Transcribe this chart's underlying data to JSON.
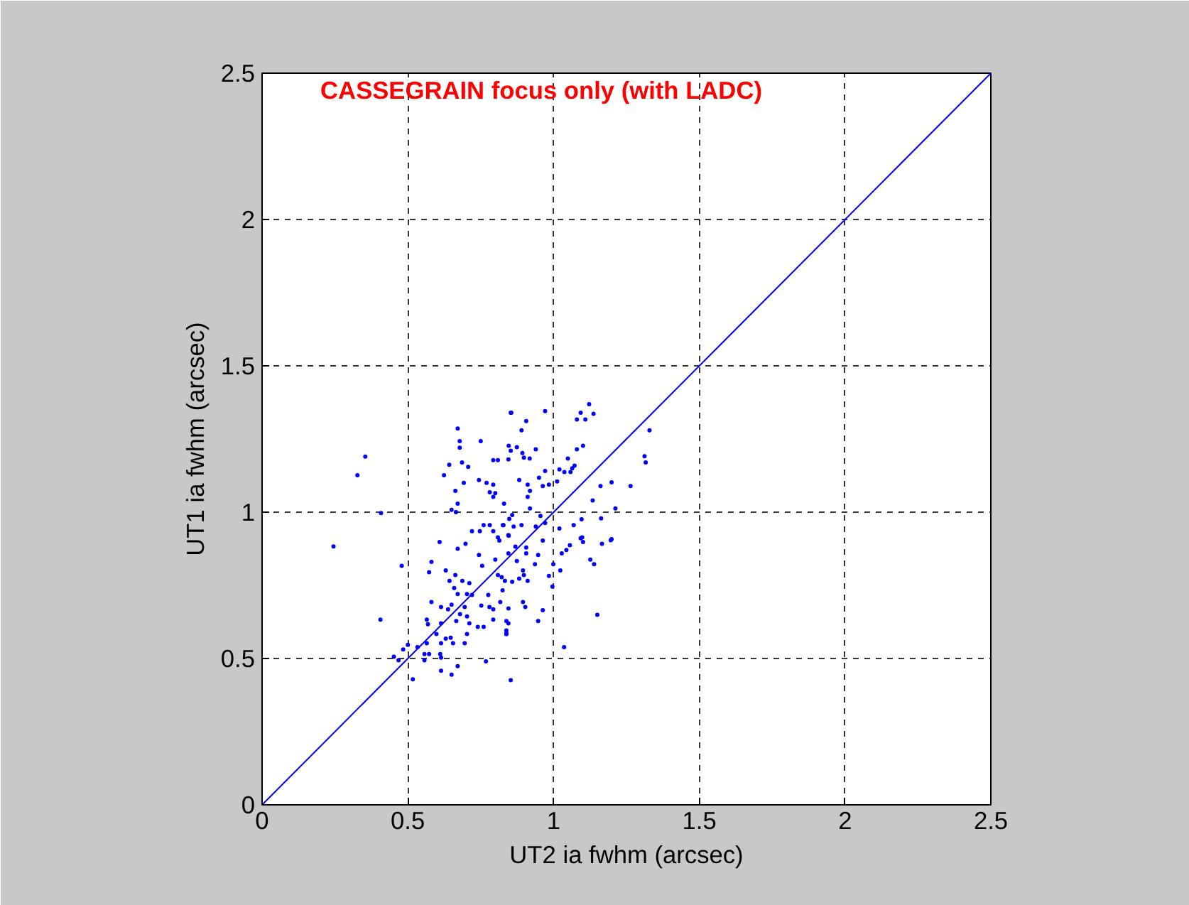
{
  "chart_data": {
    "type": "scatter",
    "title": "CASSEGRAIN focus only (with LADC)",
    "xlabel": "UT2 ia fwhm (arcsec)",
    "ylabel": "UT1 ia fwhm (arcsec)",
    "xlim": [
      0,
      2.5
    ],
    "ylim": [
      0,
      2.5
    ],
    "xticks": [
      0,
      0.5,
      1,
      1.5,
      2,
      2.5
    ],
    "yticks": [
      0,
      0.5,
      1,
      1.5,
      2,
      2.5
    ],
    "grid": true,
    "marker": "circle",
    "series": [
      {
        "color": "#0000ff",
        "x": [
          0.354,
          0.327,
          0.671,
          0.678,
          0.678,
          0.75,
          0.642,
          0.686,
          0.707,
          0.624,
          0.793,
          0.809,
          0.744,
          0.77,
          0.692,
          0.793,
          0.663,
          0.781,
          0.8,
          0.793,
          0.671,
          0.65,
          0.665,
          0.408,
          0.855,
          0.853,
          0.845,
          0.858,
          0.76,
          0.781,
          0.72,
          0.747,
          0.793,
          0.828,
          0.848,
          0.809,
          0.845,
          1.122,
          1.093,
          1.137,
          1.08,
          1.109,
          0.971,
          0.853,
          0.906,
          0.89,
          1.329,
          0.846,
          0.874,
          0.893,
          0.898,
          0.918,
          0.939,
          1.101,
          1.08,
          1.049,
          1.312,
          1.316,
          0.971,
          1.02,
          1.037,
          1.058,
          1.064,
          1.072,
          0.95,
          1.012,
          0.984,
          0.963,
          0.882,
          0.911,
          0.919,
          0.911,
          0.83,
          0.919,
          1.161,
          1.199,
          1.264,
          1.134,
          1.212,
          1.163,
          1.096,
          1.069,
          1.02,
          0.955,
          0.971,
          0.939,
          0.863,
          0.89,
          0.826,
          1.098,
          1.199,
          0.245,
          0.479,
          0.406,
          0.609,
          0.698,
          0.671,
          0.744,
          0.581,
          0.573,
          0.63,
          0.663,
          0.755,
          0.8,
          0.643,
          0.687,
          0.711,
          0.659,
          0.671,
          0.703,
          0.72,
          0.581,
          0.614,
          0.638,
          0.65,
          0.695,
          0.752,
          0.78,
          0.793,
          0.679,
          0.703,
          0.666,
          0.793,
          0.565,
          0.569,
          0.614,
          0.711,
          0.74,
          0.76,
          0.838,
          0.838,
          0.703,
          0.598,
          0.63,
          0.647,
          0.614,
          0.655,
          0.695,
          0.565,
          0.5,
          0.533,
          0.484,
          0.452,
          0.557,
          0.573,
          0.611,
          0.614,
          0.557,
          0.468,
          0.517,
          0.65,
          0.671,
          0.768,
          0.614,
          0.814,
          0.845,
          0.809,
          0.822,
          0.776,
          0.825,
          0.869,
          0.846,
          0.963,
          0.906,
          0.906,
          0.874,
          0.936,
          0.947,
          0.999,
          1.023,
          1.028,
          1.044,
          1.056,
          1.093,
          1.101,
          1.166,
          1.196,
          1.126,
          1.139,
          0.984,
          0.996,
          0.911,
          0.882,
          0.858,
          0.833,
          0.895,
          0.898,
          0.817,
          0.845,
          0.895,
          0.903,
          0.963,
          0.947,
          0.845,
          0.838,
          0.838,
          1.15,
          1.036,
          0.853
        ],
        "values": [
          1.19,
          1.126,
          1.286,
          1.243,
          1.22,
          1.243,
          1.162,
          1.17,
          1.155,
          1.126,
          1.178,
          1.178,
          1.11,
          1.1,
          1.1,
          1.094,
          1.073,
          1.068,
          1.065,
          1.052,
          1.029,
          1.008,
          1.0,
          0.997,
          1.34,
          1.21,
          1.18,
          0.99,
          0.956,
          0.956,
          0.935,
          0.935,
          0.935,
          0.956,
          0.977,
          0.914,
          0.922,
          1.369,
          1.34,
          1.336,
          1.317,
          1.317,
          1.345,
          1.34,
          1.311,
          1.28,
          1.28,
          1.227,
          1.222,
          1.202,
          1.186,
          1.183,
          1.215,
          1.227,
          1.215,
          1.183,
          1.191,
          1.17,
          1.141,
          1.146,
          1.137,
          1.137,
          1.15,
          1.159,
          1.118,
          1.105,
          1.094,
          1.089,
          1.11,
          1.094,
          1.073,
          1.052,
          1.029,
          1.013,
          1.089,
          1.102,
          1.089,
          1.04,
          1.013,
          0.979,
          0.976,
          0.956,
          0.944,
          0.987,
          0.963,
          0.951,
          0.951,
          0.956,
          0.956,
          0.914,
          0.908,
          0.883,
          0.817,
          0.633,
          0.898,
          0.892,
          0.875,
          0.854,
          0.83,
          0.795,
          0.801,
          0.785,
          0.817,
          0.838,
          0.765,
          0.765,
          0.757,
          0.741,
          0.72,
          0.72,
          0.717,
          0.693,
          0.676,
          0.668,
          0.684,
          0.676,
          0.681,
          0.676,
          0.668,
          0.652,
          0.644,
          0.628,
          0.633,
          0.633,
          0.617,
          0.62,
          0.62,
          0.608,
          0.608,
          0.628,
          0.587,
          0.584,
          0.584,
          0.568,
          0.571,
          0.552,
          0.552,
          0.552,
          0.552,
          0.547,
          0.539,
          0.531,
          0.506,
          0.515,
          0.515,
          0.515,
          0.503,
          0.494,
          0.494,
          0.429,
          0.445,
          0.474,
          0.49,
          0.458,
          0.903,
          0.859,
          0.785,
          0.778,
          0.717,
          0.733,
          0.882,
          0.919,
          0.903,
          0.879,
          0.859,
          0.833,
          0.822,
          0.854,
          0.822,
          0.801,
          0.859,
          0.871,
          0.887,
          0.911,
          0.898,
          0.892,
          0.904,
          0.838,
          0.822,
          0.782,
          0.746,
          0.765,
          0.773,
          0.762,
          0.765,
          0.801,
          0.785,
          0.693,
          0.671,
          0.693,
          0.676,
          0.665,
          0.628,
          0.62,
          0.596,
          0.583,
          0.649,
          0.539,
          0.426
        ]
      },
      {
        "type": "line",
        "marker": "none",
        "color": "#0000ff",
        "x": [
          0,
          2.5
        ],
        "values": [
          0,
          2.5
        ]
      }
    ]
  }
}
